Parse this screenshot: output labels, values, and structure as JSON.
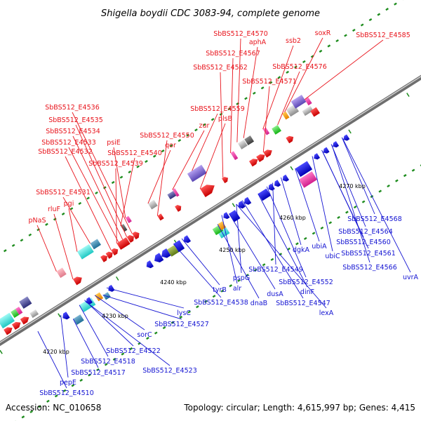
{
  "title": "Shigella boydii CDC 3083-94, complete genome",
  "accession": "Accession: NC_010658",
  "topology": "Topology: circular; Length: 4,615,997 bp; Genes: 4,415",
  "colors": {
    "forward_label": "#e8141c",
    "reverse_label": "#1414d2",
    "backbone": "#8c8c8c",
    "tick": "#1e8c1e"
  },
  "scale_labels": [
    "4220 kbp",
    "4230 kbp",
    "4240 kbp",
    "4250 kbp",
    "4260 kbp",
    "4270 kbp"
  ],
  "top_labels": [
    "SbBS512_E4570",
    "aphA",
    "soxR",
    "SbBS512_E4585",
    "ssb2",
    "SbBS512_E4567",
    "SbBS512_E4576",
    "SbBS512_E4562",
    "SbBS512_E4571",
    "SbBS512_E4536",
    "SbBS512_E4559",
    "SbBS512_E4535",
    "zur",
    "plsB",
    "psiE",
    "SbBS512_E4534",
    "SbBS512_E4550",
    "qor",
    "SbBS512_E4533",
    "SbBS512_E4540",
    "SbBS512_E4532",
    "SbBS512_E4539",
    "SbBS512_E4531",
    "pgi",
    "rluF",
    "pNaS"
  ],
  "bottom_labels": [
    "SbBS512_E4568",
    "SbBS512_E4564",
    "ubiA",
    "ubiC",
    "SbBS512_E4560",
    "dgkA",
    "SbBS512_E4561",
    "SbBS512_E4566",
    "uvrA",
    "SbBS512_E4549",
    "pspG",
    "SbBS512_E4552",
    "dinF",
    "dusA",
    "alr",
    "SbBS512_E4547",
    "tyrB",
    "SbBS512_E4538",
    "dnaB",
    "lexA",
    "lysC",
    "SbBS512_E4527",
    "sorC",
    "SbBS512_E4522",
    "SbBS512_E4518",
    "SbBS512_E4523",
    "SbBS512_E4517",
    "pepE",
    "SbBS512_E4510"
  ]
}
